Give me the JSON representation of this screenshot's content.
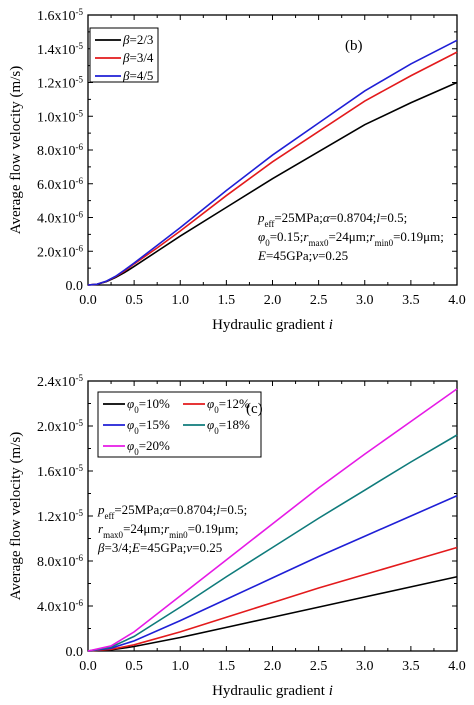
{
  "chart_data": [
    {
      "type": "line",
      "panel_label": "(b)",
      "xlabel": "Hydraulic gradient",
      "xlabel_var": "i",
      "ylabel": "Average flow velocity (m/s)",
      "xlim": [
        0,
        4.0
      ],
      "ylim": [
        0,
        1.6e-05
      ],
      "x_ticks": [
        "0.0",
        "0.5",
        "1.0",
        "1.5",
        "2.0",
        "2.5",
        "3.0",
        "3.5",
        "4.0"
      ],
      "y_ticks": [
        {
          "mant": "0.0",
          "exp": ""
        },
        {
          "mant": "2.0x10",
          "exp": "-6"
        },
        {
          "mant": "4.0x10",
          "exp": "-6"
        },
        {
          "mant": "6.0x10",
          "exp": "-6"
        },
        {
          "mant": "8.0x10",
          "exp": "-6"
        },
        {
          "mant": "1.0x10",
          "exp": "-5"
        },
        {
          "mant": "1.2x10",
          "exp": "-5"
        },
        {
          "mant": "1.4x10",
          "exp": "-5"
        },
        {
          "mant": "1.6x10",
          "exp": "-5"
        }
      ],
      "legend_position": "top-left",
      "series": [
        {
          "name": "=2/3",
          "symbol": "β",
          "color": "#000000",
          "x": [
            0,
            0.1,
            0.2,
            0.3,
            0.4,
            0.5,
            0.75,
            1.0,
            1.5,
            2.0,
            2.5,
            3.0,
            3.5,
            4.0
          ],
          "y": [
            0,
            5e-08,
            2e-07,
            4.5e-07,
            7.5e-07,
            1.1e-06,
            2e-06,
            2.9e-06,
            4.6e-06,
            6.3e-06,
            7.9e-06,
            9.5e-06,
            1.08e-05,
            1.2e-05
          ]
        },
        {
          "name": "=3/4",
          "symbol": "β",
          "color": "#e31a1c",
          "x": [
            0,
            0.1,
            0.2,
            0.3,
            0.4,
            0.5,
            0.75,
            1.0,
            1.5,
            2.0,
            2.5,
            3.0,
            3.5,
            4.0
          ],
          "y": [
            0,
            5e-08,
            2.2e-07,
            5e-07,
            8.5e-07,
            1.25e-06,
            2.2e-06,
            3.2e-06,
            5.3e-06,
            7.3e-06,
            9.1e-06,
            1.09e-05,
            1.24e-05,
            1.38e-05
          ]
        },
        {
          "name": "=4/5",
          "symbol": "β",
          "color": "#1f1fd6",
          "x": [
            0,
            0.1,
            0.2,
            0.3,
            0.4,
            0.5,
            0.75,
            1.0,
            1.5,
            2.0,
            2.5,
            3.0,
            3.5,
            4.0
          ],
          "y": [
            0,
            5e-08,
            2.3e-07,
            5.2e-07,
            9e-07,
            1.3e-06,
            2.35e-06,
            3.4e-06,
            5.6e-06,
            7.7e-06,
            9.6e-06,
            1.15e-05,
            1.31e-05,
            1.45e-05
          ]
        }
      ],
      "annotation_lines": [
        [
          {
            "t": "p",
            "i": true
          },
          {
            "t": "eff",
            "sub": true
          },
          {
            "t": "=25MPa;"
          },
          {
            "t": "α",
            "i": true
          },
          {
            "t": "=0.8704;"
          },
          {
            "t": "l",
            "i": true
          },
          {
            "t": "=0.5;"
          }
        ],
        [
          {
            "t": "φ",
            "i": true
          },
          {
            "t": "0",
            "sub": true
          },
          {
            "t": "=0.15;"
          },
          {
            "t": "r",
            "i": true
          },
          {
            "t": "max0",
            "sub": true
          },
          {
            "t": "=24μm;"
          },
          {
            "t": "r",
            "i": true
          },
          {
            "t": "min0",
            "sub": true
          },
          {
            "t": "=0.19μm;"
          }
        ],
        [
          {
            "t": "E",
            "i": true
          },
          {
            "t": "=45GPa;"
          },
          {
            "t": "ν",
            "i": true
          },
          {
            "t": "=0.25"
          }
        ]
      ]
    },
    {
      "type": "line",
      "panel_label": "(c)",
      "xlabel": "Hydraulic gradient",
      "xlabel_var": "i",
      "ylabel": "Average flow velocity (m/s)",
      "xlim": [
        0,
        4.0
      ],
      "ylim": [
        0,
        2.4e-05
      ],
      "x_ticks": [
        "0.0",
        "0.5",
        "1.0",
        "1.5",
        "2.0",
        "2.5",
        "3.0",
        "3.5",
        "4.0"
      ],
      "y_ticks": [
        {
          "mant": "0.0",
          "exp": ""
        },
        {
          "mant": "4.0x10",
          "exp": "-6"
        },
        {
          "mant": "8.0x10",
          "exp": "-6"
        },
        {
          "mant": "1.2x10",
          "exp": "-5"
        },
        {
          "mant": "1.6x10",
          "exp": "-5"
        },
        {
          "mant": "2.0x10",
          "exp": "-5"
        },
        {
          "mant": "2.4x10",
          "exp": "-5"
        }
      ],
      "legend_position": "top-left",
      "series": [
        {
          "name": "=10%",
          "symbol": "φ",
          "sub": "0",
          "color": "#000000",
          "x": [
            0,
            0.25,
            0.5,
            1.0,
            1.5,
            2.0,
            2.5,
            3.0,
            3.5,
            4.0
          ],
          "y": [
            0,
            1e-07,
            4e-07,
            1.2e-06,
            2.1e-06,
            3e-06,
            3.9e-06,
            4.8e-06,
            5.7e-06,
            6.6e-06
          ]
        },
        {
          "name": "=12%",
          "symbol": "φ",
          "sub": "0",
          "color": "#e31a1c",
          "x": [
            0,
            0.25,
            0.5,
            1.0,
            1.5,
            2.0,
            2.5,
            3.0,
            3.5,
            4.0
          ],
          "y": [
            0,
            1.5e-07,
            5.5e-07,
            1.7e-06,
            3e-06,
            4.3e-06,
            5.6e-06,
            6.8e-06,
            8e-06,
            9.2e-06
          ]
        },
        {
          "name": "=15%",
          "symbol": "φ",
          "sub": "0",
          "color": "#1f1fd6",
          "x": [
            0,
            0.25,
            0.5,
            1.0,
            1.5,
            2.0,
            2.5,
            3.0,
            3.5,
            4.0
          ],
          "y": [
            0,
            2.5e-07,
            9e-07,
            2.7e-06,
            4.6e-06,
            6.5e-06,
            8.4e-06,
            1.02e-05,
            1.2e-05,
            1.38e-05
          ]
        },
        {
          "name": "=18%",
          "symbol": "φ",
          "sub": "0",
          "color": "#0f7b7b",
          "x": [
            0,
            0.25,
            0.5,
            1.0,
            1.5,
            2.0,
            2.5,
            3.0,
            3.5,
            4.0
          ],
          "y": [
            0,
            3.5e-07,
            1.3e-06,
            3.9e-06,
            6.6e-06,
            9.2e-06,
            1.18e-05,
            1.43e-05,
            1.68e-05,
            1.92e-05
          ]
        },
        {
          "name": "=20%",
          "symbol": "φ",
          "sub": "0",
          "color": "#e61ae6",
          "x": [
            0,
            0.25,
            0.5,
            1.0,
            1.5,
            2.0,
            2.5,
            3.0,
            3.5,
            4.0
          ],
          "y": [
            0,
            4.5e-07,
            1.7e-06,
            4.9e-06,
            8.1e-06,
            1.13e-05,
            1.45e-05,
            1.75e-05,
            2.04e-05,
            2.33e-05
          ]
        }
      ],
      "annotation_lines": [
        [
          {
            "t": "p",
            "i": true
          },
          {
            "t": "eff",
            "sub": true
          },
          {
            "t": "=25MPa;"
          },
          {
            "t": "α",
            "i": true
          },
          {
            "t": "=0.8704;"
          },
          {
            "t": "l",
            "i": true
          },
          {
            "t": "=0.5;"
          }
        ],
        [
          {
            "t": "r",
            "i": true
          },
          {
            "t": "max0",
            "sub": true
          },
          {
            "t": "=24μm;"
          },
          {
            "t": "r",
            "i": true
          },
          {
            "t": "min0",
            "sub": true
          },
          {
            "t": "=0.19μm;"
          }
        ],
        [
          {
            "t": "β",
            "i": true
          },
          {
            "t": "=3/4;"
          },
          {
            "t": "E",
            "i": true
          },
          {
            "t": "=45GPa;"
          },
          {
            "t": "ν",
            "i": true
          },
          {
            "t": "=0.25"
          }
        ]
      ]
    }
  ]
}
